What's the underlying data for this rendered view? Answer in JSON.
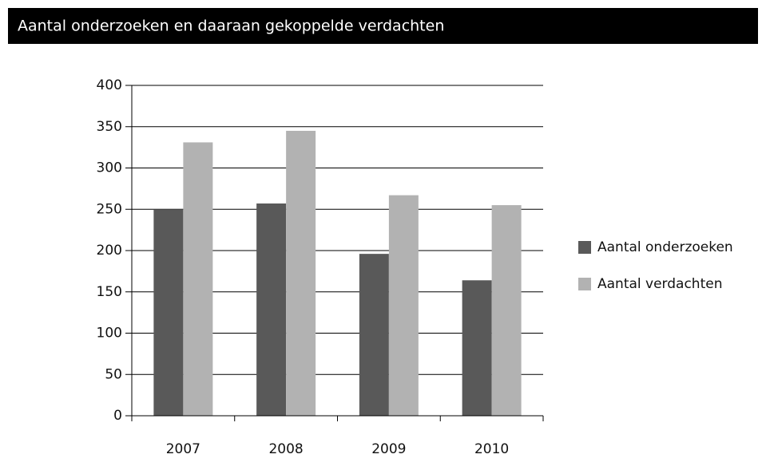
{
  "chart_data": {
    "type": "bar",
    "title": "Aantal onderzoeken en daaraan gekoppelde verdachten",
    "categories": [
      "2007",
      "2008",
      "2009",
      "2010"
    ],
    "series": [
      {
        "name": "Aantal onderzoeken",
        "color": "#595959",
        "values": [
          250,
          257,
          196,
          164
        ]
      },
      {
        "name": "Aantal verdachten",
        "color": "#b2b2b2",
        "values": [
          331,
          345,
          267,
          255
        ]
      }
    ],
    "ylim": [
      0,
      400
    ],
    "yticks": [
      0,
      50,
      100,
      150,
      200,
      250,
      300,
      350,
      400
    ],
    "grid": true,
    "legend": "right"
  }
}
